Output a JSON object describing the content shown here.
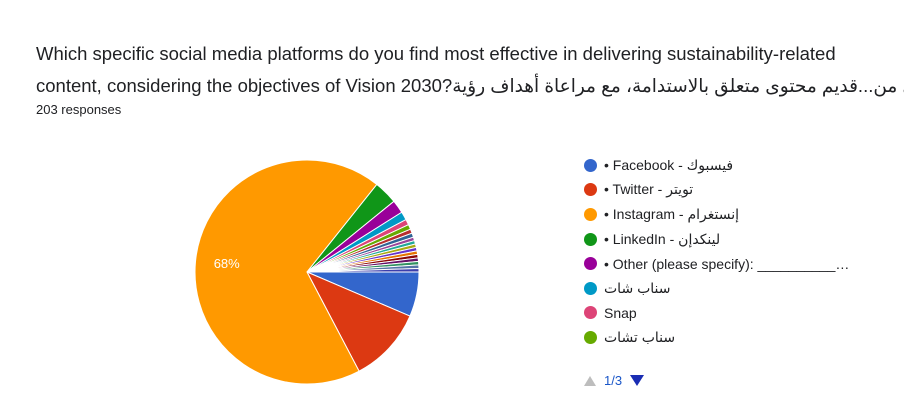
{
  "question": {
    "line1": "Which specific social media platforms do you find most effective in delivering sustainability-related",
    "line2": "content, considering the objectives of Vision 2030?؟2030 ي من...قديم محتوى متعلق بالاستدامة، مع مراعاة أهداف رؤية"
  },
  "responses_label": "203 responses",
  "pager": {
    "label": "1/3"
  },
  "chart_data": {
    "type": "pie",
    "total_responses": 203,
    "slices": [
      {
        "label": "• Facebook - فيسبوك",
        "percent": 6.4,
        "color": "#3366cc"
      },
      {
        "label": "• Twitter - تويتر",
        "percent": 10.8,
        "color": "#dc3912"
      },
      {
        "label": "• Instagram - إنستغرام",
        "percent": 68,
        "color": "#ff9900",
        "data_label": "68%"
      },
      {
        "label": "• LinkedIn - لينكدإن",
        "percent": 3.4,
        "color": "#109618"
      },
      {
        "label": "• Other (please specify): __________…",
        "percent": 1.9,
        "color": "#990099"
      },
      {
        "label": "سناب شات",
        "percent": 1.2,
        "color": "#0099c6"
      },
      {
        "label": "Snap",
        "percent": 0.8,
        "color": "#dd4477"
      },
      {
        "label": "سناب تشات",
        "percent": 0.7,
        "color": "#66aa00"
      },
      {
        "label": "",
        "percent": 0.6,
        "color": "#b82e2e"
      },
      {
        "label": "",
        "percent": 0.6,
        "color": "#316395"
      },
      {
        "label": "",
        "percent": 0.5,
        "color": "#994499"
      },
      {
        "label": "",
        "percent": 0.5,
        "color": "#22aa99"
      },
      {
        "label": "",
        "percent": 0.5,
        "color": "#aaaa11"
      },
      {
        "label": "",
        "percent": 0.5,
        "color": "#6633cc"
      },
      {
        "label": "",
        "percent": 0.5,
        "color": "#e67300"
      },
      {
        "label": "",
        "percent": 0.5,
        "color": "#8b0707"
      },
      {
        "label": "",
        "percent": 0.5,
        "color": "#651067"
      },
      {
        "label": "",
        "percent": 0.5,
        "color": "#329262"
      },
      {
        "label": "",
        "percent": 0.5,
        "color": "#5574a6"
      },
      {
        "label": "",
        "percent": 0.5,
        "color": "#3b3eac"
      }
    ],
    "legend_position": "right",
    "legend_visible_count": 8
  }
}
